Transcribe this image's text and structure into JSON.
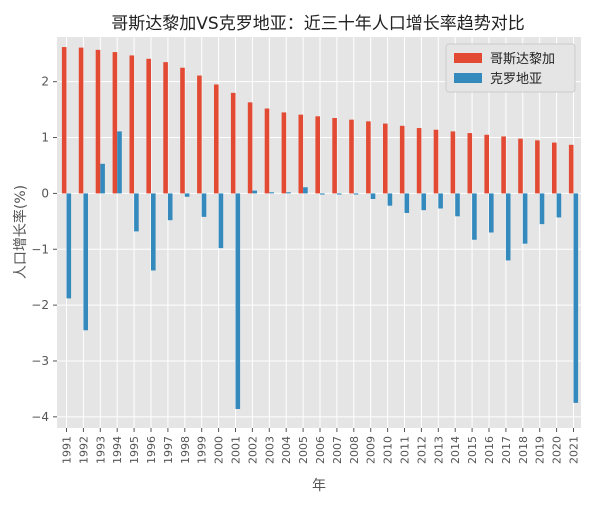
{
  "chart_data": {
    "type": "bar",
    "title": "哥斯达黎加VS克罗地亚：近三十年人口增长率趋势对比",
    "xlabel": "年",
    "ylabel": "人口增长率(%)",
    "ylim": [
      -4.2,
      2.8
    ],
    "yticks": [
      2,
      1,
      0,
      -1,
      -2,
      -3,
      -4
    ],
    "ytick_labels": [
      "2",
      "1",
      "0",
      "−1",
      "−2",
      "−3",
      "−4"
    ],
    "grid": true,
    "legend_position": "top-right",
    "categories": [
      "1991",
      "1992",
      "1993",
      "1994",
      "1995",
      "1996",
      "1997",
      "1998",
      "1999",
      "2000",
      "2001",
      "2002",
      "2003",
      "2004",
      "2005",
      "2006",
      "2007",
      "2008",
      "2009",
      "2010",
      "2011",
      "2012",
      "2013",
      "2014",
      "2015",
      "2016",
      "2017",
      "2018",
      "2019",
      "2020",
      "2021"
    ],
    "series": [
      {
        "name": "哥斯达黎加",
        "color": "#e24a33",
        "values": [
          2.62,
          2.61,
          2.57,
          2.53,
          2.47,
          2.41,
          2.35,
          2.25,
          2.11,
          1.95,
          1.8,
          1.63,
          1.52,
          1.45,
          1.41,
          1.38,
          1.35,
          1.32,
          1.29,
          1.25,
          1.21,
          1.17,
          1.14,
          1.11,
          1.08,
          1.05,
          1.02,
          0.98,
          0.95,
          0.91,
          0.87
        ]
      },
      {
        "name": "克罗地亚",
        "color": "#348abd",
        "values": [
          -1.88,
          -2.45,
          0.53,
          1.11,
          -0.68,
          -1.38,
          -0.48,
          -0.06,
          -0.42,
          -0.98,
          -3.86,
          0.05,
          0.02,
          0.02,
          0.11,
          -0.02,
          -0.02,
          -0.02,
          -0.1,
          -0.22,
          -0.35,
          -0.3,
          -0.27,
          -0.41,
          -0.83,
          -0.7,
          -1.2,
          -0.9,
          -0.55,
          -0.43,
          -3.75
        ]
      }
    ]
  }
}
